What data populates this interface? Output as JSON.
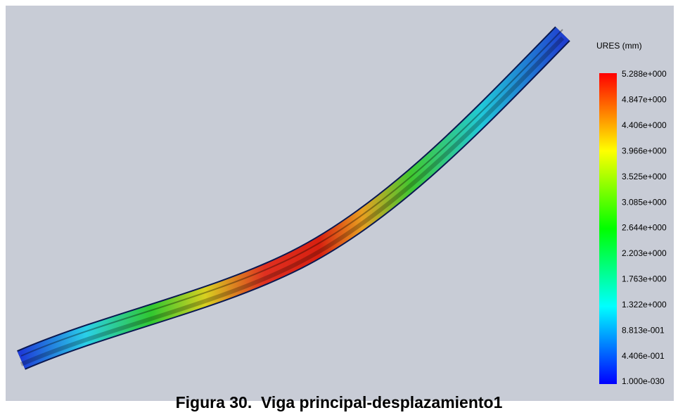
{
  "legend": {
    "title": "URES (mm)",
    "labels": [
      "5.288e+000",
      "4.847e+000",
      "4.406e+000",
      "3.966e+000",
      "3.525e+000",
      "3.085e+000",
      "2.644e+000",
      "2.203e+000",
      "1.763e+000",
      "1.322e+000",
      "8.813e-001",
      "4.406e-001",
      "1.000e-030"
    ]
  },
  "caption": "Figura 30.  Viga principal-desplazamiento1"
}
